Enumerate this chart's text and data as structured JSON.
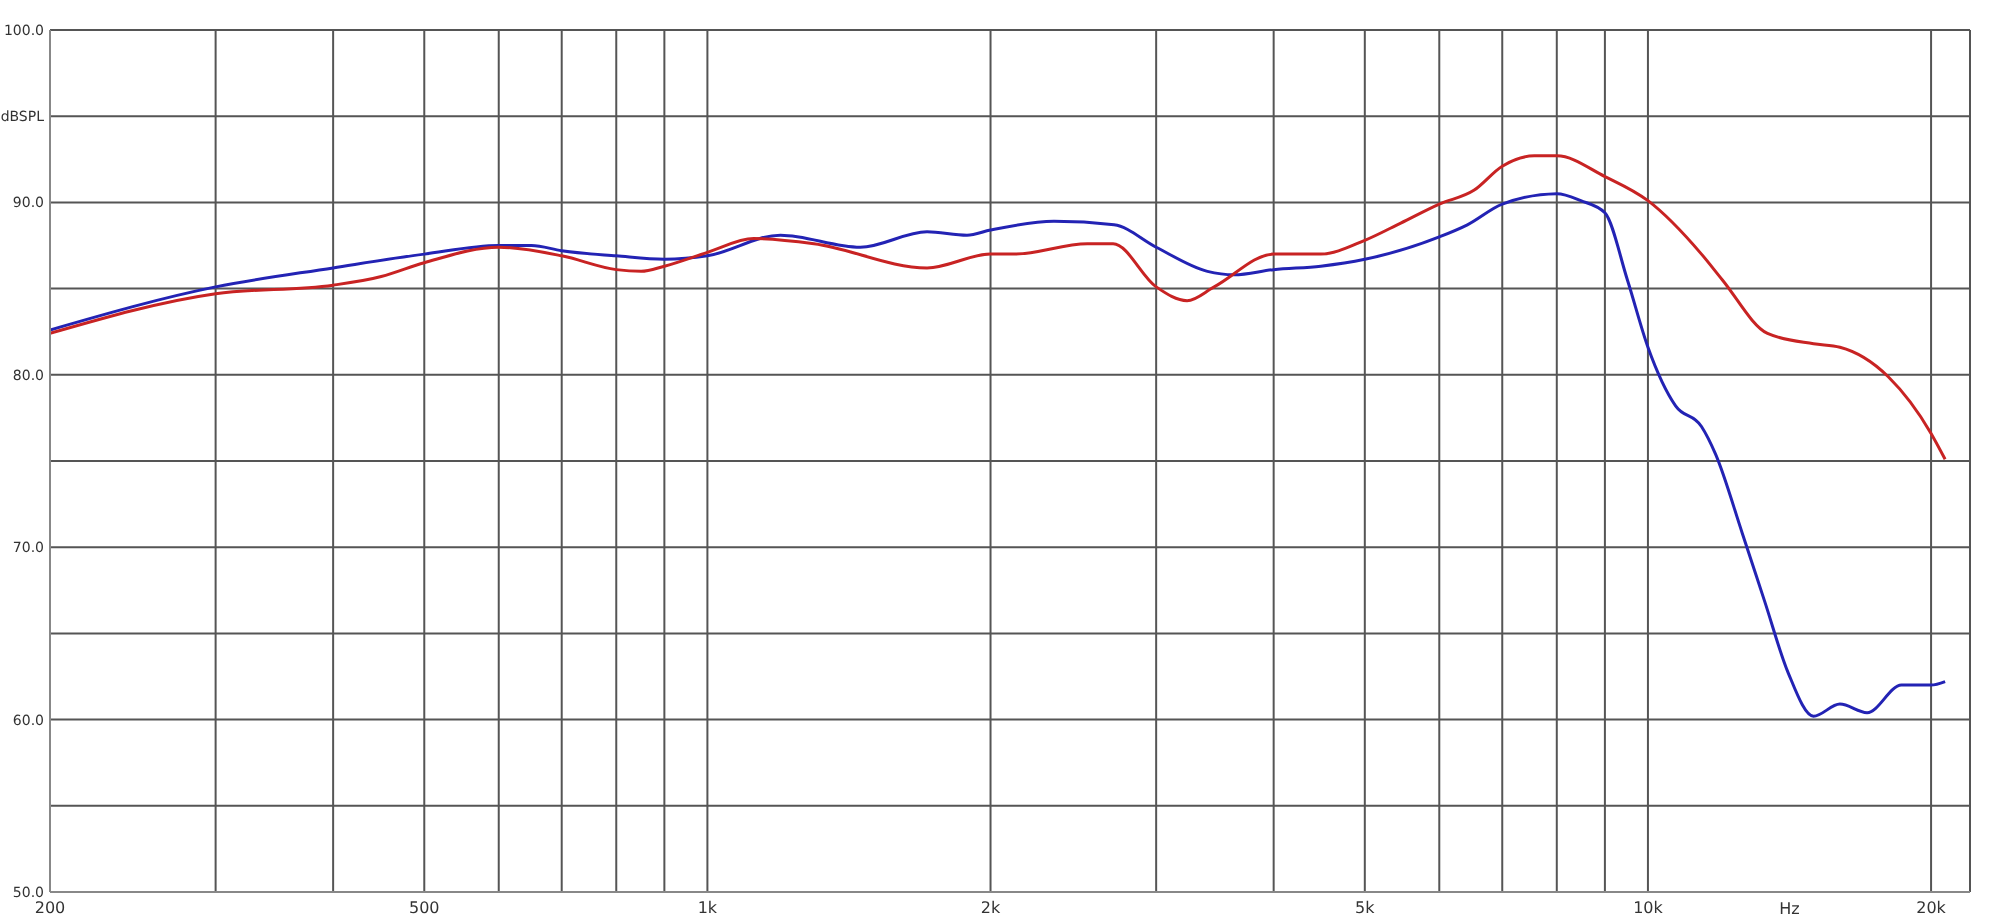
{
  "chart_data": {
    "type": "line",
    "xlabel": "Hz",
    "log": "x",
    "grid": true,
    "marker": "none",
    "line_style": "solid",
    "xlim": [
      200,
      22000
    ],
    "xticks": [
      200,
      {
        "value": 300,
        "label": null
      },
      {
        "value": 400,
        "label": null
      },
      500,
      {
        "value": 600,
        "label": null
      },
      {
        "value": 700,
        "label": null
      },
      {
        "value": 800,
        "label": null
      },
      {
        "value": 900,
        "label": null
      },
      {
        "value": 1000,
        "label": "1k"
      },
      {
        "value": 2000,
        "label": "2k"
      },
      {
        "value": 3000,
        "label": null
      },
      {
        "value": 4000,
        "label": null
      },
      {
        "value": 5000,
        "label": "5k"
      },
      {
        "value": 6000,
        "label": null
      },
      {
        "value": 7000,
        "label": null
      },
      {
        "value": 8000,
        "label": null
      },
      {
        "value": 9000,
        "label": null
      },
      {
        "value": 10000,
        "label": "10k"
      },
      {
        "value": 20000,
        "label": "20k"
      }
    ],
    "ylim": [
      50,
      100
    ],
    "yticks": [
      {
        "value": 50,
        "label": "50.0"
      },
      {
        "value": 55,
        "label": null
      },
      {
        "value": 60,
        "label": "60.0"
      },
      {
        "value": 65,
        "label": null
      },
      {
        "value": 70,
        "label": "70.0"
      },
      {
        "value": 75,
        "label": null
      },
      {
        "value": 80,
        "label": "80.0"
      },
      {
        "value": 85,
        "label": null
      },
      {
        "value": 90,
        "label": "90.0"
      },
      {
        "value": 95,
        "label": "dBSPL"
      },
      {
        "value": 100,
        "label": "100.0"
      }
    ],
    "series": [
      {
        "color": "#2323b4",
        "x": [
          200,
          300,
          400,
          500,
          600,
          650,
          700,
          800,
          900,
          1000,
          1196,
          1454,
          1712,
          1888,
          2000,
          2336,
          2706,
          3000,
          3401,
          3630,
          4000,
          4489,
          5000,
          6000,
          6427,
          7000,
          8000,
          8485,
          9000,
          9510,
          10000,
          10700,
          11400,
          11800,
          12600,
          13300,
          14100,
          15000,
          16000,
          17100,
          18600,
          20000,
          20700
        ],
        "values": [
          82.6,
          85.1,
          86.2,
          87.0,
          87.5,
          87.5,
          87.2,
          86.9,
          86.7,
          86.9,
          88.1,
          87.4,
          88.3,
          88.1,
          88.4,
          88.9,
          88.7,
          87.4,
          86.0,
          85.8,
          86.1,
          86.3,
          86.7,
          88.0,
          88.7,
          89.9,
          90.5,
          90.1,
          89.4,
          85.5,
          81.6,
          78.2,
          77.0,
          75.4,
          70.8,
          66.9,
          62.7,
          60.2,
          60.9,
          60.4,
          62.0,
          62.0,
          62.2
        ]
      },
      {
        "color": "#c82323",
        "x": [
          200,
          300,
          400,
          450,
          500,
          600,
          700,
          800,
          850,
          900,
          1000,
          1120,
          1298,
          1712,
          2000,
          2118,
          2535,
          2700,
          3000,
          3236,
          3458,
          4000,
          4489,
          5000,
          5460,
          6000,
          6530,
          7000,
          7570,
          8000,
          9000,
          10000,
          11400,
          12000,
          13400,
          15000,
          16000,
          18000,
          20000,
          20700
        ],
        "values": [
          82.4,
          84.7,
          85.2,
          85.7,
          86.5,
          87.4,
          86.9,
          86.1,
          86.0,
          86.3,
          87.1,
          87.9,
          87.6,
          86.2,
          87.0,
          87.0,
          87.6,
          87.6,
          85.1,
          84.3,
          85.1,
          87.0,
          87.0,
          87.8,
          88.8,
          89.9,
          90.7,
          92.1,
          92.7,
          92.7,
          91.5,
          90.1,
          87.0,
          85.5,
          82.4,
          81.8,
          81.6,
          79.9,
          76.6,
          75.1
        ]
      }
    ]
  }
}
